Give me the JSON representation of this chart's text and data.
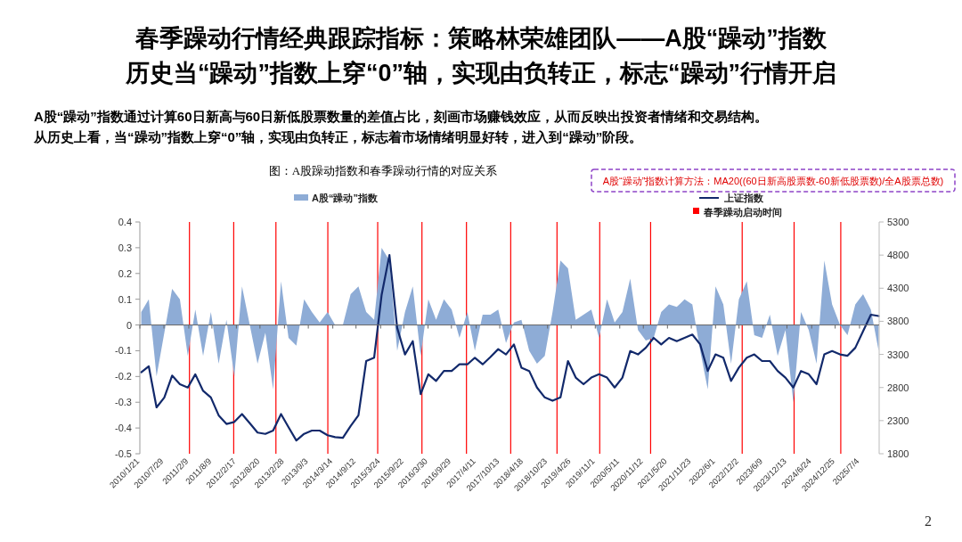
{
  "chart_data": {
    "type": "area",
    "title": "春季躁动行情经典跟踪指标：策略林荣雄团队——A股“躁动”指数",
    "subtitle": "历史当“躁动”指数上穿“0”轴，实现由负转正，标志“躁动”行情开启",
    "annotations": [
      "A股“躁动”指数通过计算60日新高与60日新低股票数量的差值占比，刻画市场赚钱效应，从而反映出投资者情绪和交易结构。",
      "从历史上看，当“躁动”指数上穿“0”轴，实现由负转正，标志着市场情绪明显好转，进入到“躁动”阶段。",
      "图：A股躁动指数和春季躁动行情的对应关系",
      "A股“躁动”指数计算方法：MA20((60日新高股票数-60新低股票数)/全A股票总数)",
      "2"
    ],
    "x": [
      "2010-02",
      "2010-04",
      "2010-06",
      "2010-08",
      "2010-10",
      "2010-12",
      "2011-02",
      "2011-04",
      "2011-06",
      "2011-08",
      "2011-10",
      "2011-12",
      "2012-02",
      "2012-04",
      "2012-06",
      "2012-08",
      "2012-10",
      "2012-12",
      "2013-02",
      "2013-04",
      "2013-06",
      "2013-08",
      "2013-10",
      "2013-12",
      "2014-02",
      "2014-04",
      "2014-06",
      "2014-08",
      "2014-10",
      "2014-12",
      "2015-02",
      "2015-04",
      "2015-06",
      "2015-08",
      "2015-10",
      "2015-12",
      "2016-02",
      "2016-04",
      "2016-06",
      "2016-08",
      "2016-10",
      "2016-12",
      "2017-02",
      "2017-04",
      "2017-06",
      "2017-08",
      "2017-10",
      "2017-12",
      "2018-02",
      "2018-04",
      "2018-06",
      "2018-08",
      "2018-10",
      "2018-12",
      "2019-02",
      "2019-04",
      "2019-06",
      "2019-08",
      "2019-10",
      "2019-12",
      "2020-02",
      "2020-04",
      "2020-06",
      "2020-08",
      "2020-10",
      "2020-12",
      "2021-02",
      "2021-04",
      "2021-06",
      "2021-08",
      "2021-10",
      "2021-12",
      "2022-02",
      "2022-04",
      "2022-06",
      "2022-08",
      "2022-10",
      "2022-12",
      "2023-02",
      "2023-04",
      "2023-06",
      "2023-08",
      "2023-10",
      "2023-12",
      "2024-02",
      "2024-04",
      "2024-06",
      "2024-08",
      "2024-10",
      "2024-12",
      "2025-02",
      "2025-04",
      "2025-06",
      "2025-08",
      "2025-10",
      "2025-12"
    ],
    "series": [
      {
        "name": "A股“躁动”指数",
        "color": "#8eacd6",
        "values": [
          0.05,
          0.1,
          -0.2,
          -0.03,
          0.14,
          0.1,
          -0.12,
          0.06,
          -0.12,
          0.05,
          -0.15,
          0.02,
          -0.2,
          0.15,
          0,
          -0.15,
          -0.03,
          -0.25,
          0.17,
          -0.05,
          -0.08,
          0.1,
          0.05,
          0.01,
          0.05,
          0,
          0,
          0.12,
          0.15,
          0.05,
          0.02,
          0.3,
          0.25,
          -0.1,
          0.05,
          0.15,
          -0.12,
          0.1,
          0.02,
          0.1,
          0.06,
          -0.05,
          0.05,
          -0.1,
          0.04,
          0.04,
          0.06,
          -0.07,
          0.01,
          0.02,
          -0.1,
          -0.15,
          -0.12,
          0.05,
          0.25,
          0.22,
          0.02,
          0.04,
          0.06,
          -0.05,
          0.1,
          0.01,
          0.05,
          0.18,
          -0.02,
          -0.06,
          -0.05,
          0.05,
          0.08,
          0.07,
          0.1,
          0.08,
          -0.1,
          -0.25,
          0.15,
          0.08,
          -0.15,
          0.1,
          0.17,
          -0.04,
          -0.05,
          0.04,
          -0.12,
          -0.02,
          -0.3,
          0.05,
          -0.02,
          -0.15,
          0.25,
          0.08,
          0,
          -0.04,
          0.08,
          0.12,
          0.06,
          -0.1
        ]
      },
      {
        "name": "上证指数",
        "type": "line",
        "axis": "y2",
        "color": "#12296b",
        "values": [
          3030,
          3120,
          2500,
          2650,
          2980,
          2850,
          2800,
          3000,
          2750,
          2650,
          2380,
          2250,
          2280,
          2400,
          2260,
          2120,
          2100,
          2150,
          2400,
          2200,
          2000,
          2100,
          2150,
          2150,
          2080,
          2050,
          2040,
          2220,
          2380,
          3200,
          3250,
          4200,
          4800,
          3700,
          3300,
          3500,
          2700,
          3000,
          2900,
          3050,
          3050,
          3150,
          3150,
          3250,
          3150,
          3260,
          3380,
          3300,
          3450,
          3100,
          3050,
          2800,
          2650,
          2600,
          2650,
          3200,
          2950,
          2850,
          2950,
          3000,
          2950,
          2800,
          2950,
          3350,
          3300,
          3400,
          3550,
          3450,
          3550,
          3500,
          3550,
          3600,
          3450,
          3050,
          3300,
          3250,
          2900,
          3100,
          3250,
          3300,
          3200,
          3200,
          3050,
          2950,
          2800,
          3050,
          3000,
          2850,
          3300,
          3350,
          3300,
          3280,
          3400,
          3650,
          3900,
          3880
        ]
      }
    ],
    "xlim": [
      "2010-01-21",
      "2025-12-05"
    ],
    "xticks": [
      {
        "value": "2010-01-21",
        "label": "2010/1/21"
      },
      {
        "value": "2010-07-29",
        "label": "2010/7/29"
      },
      {
        "value": "2011-02-09",
        "label": "2011/2/9"
      },
      {
        "value": "2011-08-09",
        "label": "2011/8/9"
      },
      {
        "value": "2012-02-17",
        "label": "2012/2/17"
      },
      {
        "value": "2012-08-20",
        "label": "2012/8/20"
      },
      {
        "value": "2013-02-28",
        "label": "2013/2/28"
      },
      {
        "value": "2013-09-03",
        "label": "2013/9/3"
      },
      {
        "value": "2014-03-14",
        "label": "2014/3/14"
      },
      {
        "value": "2014-09-12",
        "label": "2014/9/12"
      },
      {
        "value": "2015-03-24",
        "label": "2015/3/24"
      },
      {
        "value": "2015-09-22",
        "label": "2015/9/22"
      },
      {
        "value": "2016-03-30",
        "label": "2016/3/30"
      },
      {
        "value": "2016-09-29",
        "label": "2016/9/29"
      },
      {
        "value": "2017-04-11",
        "label": "2017/4/11"
      },
      {
        "value": "2017-10-13",
        "label": "2017/10/13"
      },
      {
        "value": "2018-04-18",
        "label": "2018/4/18"
      },
      {
        "value": "2018-10-23",
        "label": "2018/10/23"
      },
      {
        "value": "2019-04-26",
        "label": "2019/4/26"
      },
      {
        "value": "2019-11-01",
        "label": "2019/11/1"
      },
      {
        "value": "2020-05-11",
        "label": "2020/5/11"
      },
      {
        "value": "2020-11-12",
        "label": "2020/11/12"
      },
      {
        "value": "2021-05-20",
        "label": "2021/5/20"
      },
      {
        "value": "2021-11-23",
        "label": "2021/11/23"
      },
      {
        "value": "2022-06-01",
        "label": "2022/6/1"
      },
      {
        "value": "2022-12-02",
        "label": "2022/12/2"
      },
      {
        "value": "2023-06-09",
        "label": "2023/6/9"
      },
      {
        "value": "2023-12-13",
        "label": "2023/12/13"
      },
      {
        "value": "2024-06-24",
        "label": "2024/6/24"
      },
      {
        "value": "2024-12-25",
        "label": "2024/12/25"
      },
      {
        "value": "2025-07-04",
        "label": "2025/7/4"
      }
    ],
    "ylim": [
      -0.5,
      0.4
    ],
    "yticks": [
      -0.5,
      -0.4,
      -0.3,
      -0.2,
      -0.1,
      0,
      0.1,
      0.2,
      0.3,
      0.4
    ],
    "y2lim": [
      1800,
      5300
    ],
    "y2ticks": [
      1800,
      2300,
      2800,
      3300,
      3800,
      4300,
      4800,
      5300
    ],
    "ref_lines": [
      {
        "axis": "x",
        "value": "2011-02-14",
        "color": "#ff0000",
        "label": "春季躁动启动时间"
      },
      {
        "axis": "x",
        "value": "2012-01-27",
        "color": "#ff0000"
      },
      {
        "axis": "x",
        "value": "2012-12-23",
        "color": "#ff0000"
      },
      {
        "axis": "x",
        "value": "2014-02-03",
        "color": "#ff0000"
      },
      {
        "axis": "x",
        "value": "2015-03-01",
        "color": "#ff0000"
      },
      {
        "axis": "x",
        "value": "2016-02-11",
        "color": "#ff0000"
      },
      {
        "axis": "x",
        "value": "2017-01-25",
        "color": "#ff0000"
      },
      {
        "axis": "x",
        "value": "2018-01-07",
        "color": "#ff0000"
      },
      {
        "axis": "x",
        "value": "2019-01-05",
        "color": "#ff0000"
      },
      {
        "axis": "x",
        "value": "2019-12-06",
        "color": "#ff0000"
      },
      {
        "axis": "x",
        "value": "2021-01-08",
        "color": "#ff0000"
      },
      {
        "axis": "x",
        "value": "2022-12-27",
        "color": "#ff0000"
      },
      {
        "axis": "x",
        "value": "2024-02-07",
        "color": "#ff0000"
      },
      {
        "axis": "x",
        "value": "2025-02-07",
        "color": "#ff0000"
      }
    ],
    "legend": "top"
  }
}
